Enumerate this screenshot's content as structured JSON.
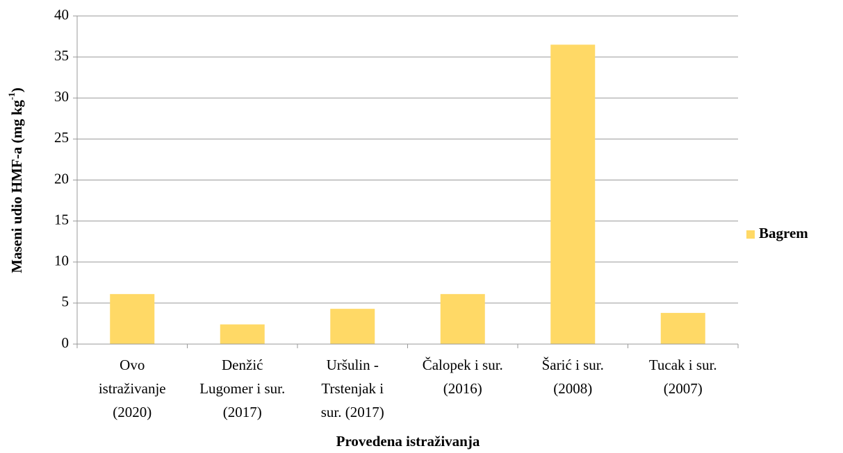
{
  "chart_data": {
    "type": "bar",
    "y_label": {
      "text": "Maseni udio HMF-a (mg kg",
      "superscript": "-1",
      "suffix": ")"
    },
    "x_label": "Provedena istraživanja",
    "categories": [
      [
        "Ovo",
        "istraživanje",
        "(2020)"
      ],
      [
        "Denžić",
        "Lugomer i sur.",
        "(2017)"
      ],
      [
        "Uršulin -",
        "Trstenjak i",
        "sur. (2017)"
      ],
      [
        "Čalopek i sur.",
        "(2016)"
      ],
      [
        "Šarić i sur.",
        "(2008)"
      ],
      [
        "Tucak i sur.",
        "(2007)"
      ]
    ],
    "series": [
      {
        "name": "Bagrem",
        "color": "#ffd966",
        "values": [
          6.1,
          2.4,
          4.3,
          6.1,
          36.5,
          3.8
        ]
      }
    ],
    "ylim": [
      0,
      40
    ],
    "yticks": [
      0,
      5,
      10,
      15,
      20,
      25,
      30,
      35,
      40
    ],
    "grid": true,
    "legend": "right"
  }
}
